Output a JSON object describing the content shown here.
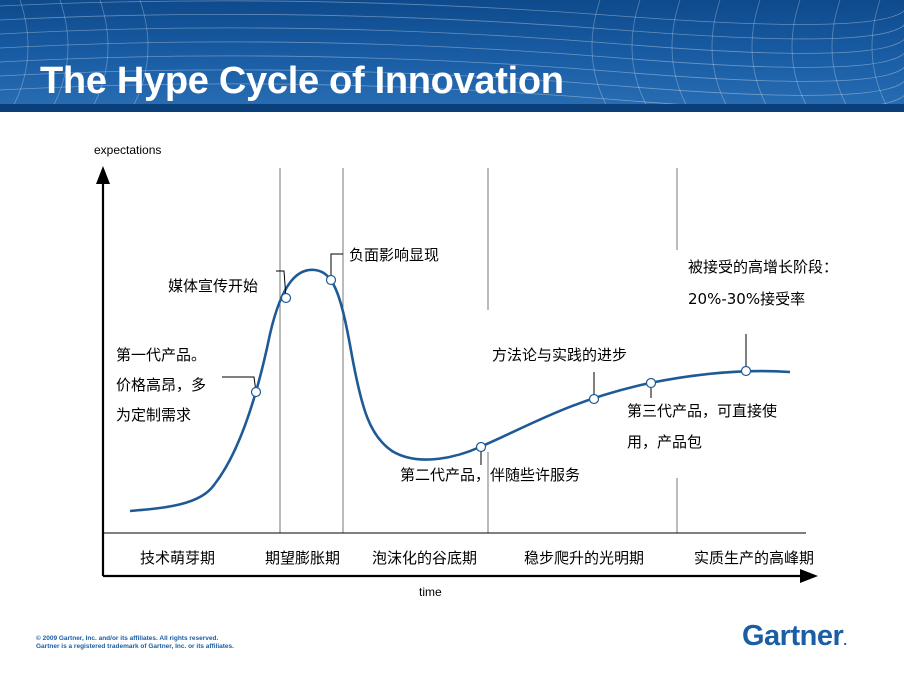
{
  "header": {
    "title": "The Hype Cycle of Innovation"
  },
  "chart_data": {
    "type": "line",
    "ylabel": "expectations",
    "xlabel": "time",
    "phases": [
      "技术萌芽期",
      "期望膨胀期",
      "泡沫化的谷底期",
      "稳步爬升的光明期",
      "实质生产的高峰期"
    ],
    "annotations": [
      {
        "lines": [
          "第一代产品。",
          "价格高昂，多",
          "为定制需求"
        ]
      },
      {
        "lines": [
          "媒体宣传开始"
        ]
      },
      {
        "lines": [
          "负面影响显现"
        ]
      },
      {
        "lines": [
          "第二代产品，伴随些许服务"
        ]
      },
      {
        "lines": [
          "方法论与实践的进步"
        ]
      },
      {
        "lines": [
          "第三代产品，可直接使",
          "用，产品包"
        ]
      },
      {
        "lines": [
          "被接受的高增长阶段：",
          "20%-30%接受率"
        ]
      }
    ]
  },
  "footer": {
    "copyright": "© 2009 Gartner, Inc. and/or its affiliates. All rights reserved.",
    "trademark": "Gartner is a registered trademark of Gartner, Inc. or its affiliates.",
    "logo": "Gartner",
    "logo_dot": "."
  },
  "colors": {
    "curve": "#1e5a96",
    "header": "#1a5ea6",
    "brand": "#1a5ea6"
  }
}
